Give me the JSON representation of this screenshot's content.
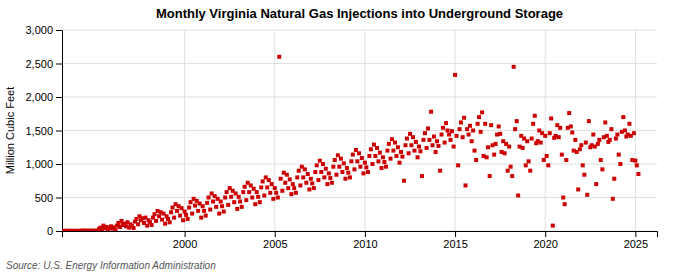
{
  "chart_data": {
    "type": "scatter",
    "title": "Monthly Virginia Natural Gas Injections into Underground Storage",
    "ylabel": "Million Cubic Feet",
    "source": "Source: U.S. Energy Information Administration",
    "color": "#cc0000",
    "marker": "square",
    "grid": true,
    "xlim": [
      1993.2,
      2026.2
    ],
    "ylim": [
      0,
      3000
    ],
    "xticks": [
      2000,
      2005,
      2010,
      2015,
      2020,
      2025
    ],
    "yticks": [
      0,
      500,
      {
        "value": 1000,
        "label": "1,000"
      },
      {
        "value": 1500,
        "label": "1,500"
      },
      {
        "value": 2000,
        "label": "2,000"
      },
      {
        "value": 2500,
        "label": "2,500"
      },
      {
        "value": 3000,
        "label": "3,000"
      }
    ],
    "x": [
      1993.25,
      1993.33,
      1993.42,
      1993.5,
      1993.58,
      1993.67,
      1993.75,
      1993.83,
      1993.92,
      1994.0,
      1994.08,
      1994.17,
      1994.25,
      1994.33,
      1994.42,
      1994.5,
      1994.58,
      1994.67,
      1994.75,
      1994.83,
      1994.92,
      1995.0,
      1995.08,
      1995.17,
      1995.25,
      1995.33,
      1995.42,
      1995.5,
      1995.58,
      1995.67,
      1995.75,
      1995.83,
      1995.92,
      1996.0,
      1996.08,
      1996.17,
      1996.25,
      1996.33,
      1996.42,
      1996.5,
      1996.58,
      1996.67,
      1996.75,
      1996.83,
      1996.92,
      1997.0,
      1997.08,
      1997.17,
      1997.25,
      1997.33,
      1997.42,
      1997.5,
      1997.58,
      1997.67,
      1997.75,
      1997.83,
      1997.92,
      1998.0,
      1998.08,
      1998.17,
      1998.25,
      1998.33,
      1998.42,
      1998.5,
      1998.58,
      1998.67,
      1998.75,
      1998.83,
      1998.92,
      1999.0,
      1999.08,
      1999.17,
      1999.25,
      1999.33,
      1999.42,
      1999.5,
      1999.58,
      1999.67,
      1999.75,
      1999.83,
      1999.92,
      2000.0,
      2000.08,
      2000.17,
      2000.25,
      2000.33,
      2000.42,
      2000.5,
      2000.58,
      2000.67,
      2000.75,
      2000.83,
      2000.92,
      2001.0,
      2001.08,
      2001.17,
      2001.25,
      2001.33,
      2001.42,
      2001.5,
      2001.58,
      2001.67,
      2001.75,
      2001.83,
      2001.92,
      2002.0,
      2002.08,
      2002.17,
      2002.25,
      2002.33,
      2002.42,
      2002.5,
      2002.58,
      2002.67,
      2002.75,
      2002.83,
      2002.92,
      2003.0,
      2003.08,
      2003.17,
      2003.25,
      2003.33,
      2003.42,
      2003.5,
      2003.58,
      2003.67,
      2003.75,
      2003.83,
      2003.92,
      2004.0,
      2004.08,
      2004.17,
      2004.25,
      2004.33,
      2004.42,
      2004.5,
      2004.58,
      2004.67,
      2004.75,
      2004.83,
      2004.92,
      2005.0,
      2005.08,
      2005.17,
      2005.25,
      2005.33,
      2005.42,
      2005.5,
      2005.58,
      2005.67,
      2005.75,
      2005.83,
      2005.92,
      2006.0,
      2006.08,
      2006.17,
      2006.25,
      2006.33,
      2006.42,
      2006.5,
      2006.58,
      2006.67,
      2006.75,
      2006.83,
      2006.92,
      2007.0,
      2007.08,
      2007.17,
      2007.25,
      2007.33,
      2007.42,
      2007.5,
      2007.58,
      2007.67,
      2007.75,
      2007.83,
      2007.92,
      2008.0,
      2008.08,
      2008.17,
      2008.25,
      2008.33,
      2008.42,
      2008.5,
      2008.58,
      2008.67,
      2008.75,
      2008.83,
      2008.92,
      2009.0,
      2009.08,
      2009.17,
      2009.25,
      2009.33,
      2009.42,
      2009.5,
      2009.58,
      2009.67,
      2009.75,
      2009.83,
      2009.92,
      2010.0,
      2010.08,
      2010.17,
      2010.25,
      2010.33,
      2010.42,
      2010.5,
      2010.58,
      2010.67,
      2010.75,
      2010.83,
      2010.92,
      2011.0,
      2011.08,
      2011.17,
      2011.25,
      2011.33,
      2011.42,
      2011.5,
      2011.58,
      2011.67,
      2011.75,
      2011.83,
      2011.92,
      2012.0,
      2012.08,
      2012.17,
      2012.25,
      2012.33,
      2012.42,
      2012.5,
      2012.58,
      2012.67,
      2012.75,
      2012.83,
      2012.92,
      2013.0,
      2013.08,
      2013.17,
      2013.25,
      2013.33,
      2013.42,
      2013.5,
      2013.58,
      2013.67,
      2013.75,
      2013.83,
      2013.92,
      2014.0,
      2014.08,
      2014.17,
      2014.25,
      2014.33,
      2014.42,
      2014.5,
      2014.58,
      2014.67,
      2014.75,
      2014.83,
      2014.92,
      2015.0,
      2015.08,
      2015.17,
      2015.25,
      2015.33,
      2015.42,
      2015.5,
      2015.58,
      2015.67,
      2015.75,
      2015.83,
      2015.92,
      2016.0,
      2016.08,
      2016.17,
      2016.25,
      2016.33,
      2016.42,
      2016.5,
      2016.58,
      2016.67,
      2016.75,
      2016.83,
      2016.92,
      2017.0,
      2017.08,
      2017.17,
      2017.25,
      2017.33,
      2017.42,
      2017.5,
      2017.58,
      2017.67,
      2017.75,
      2017.83,
      2017.92,
      2018.0,
      2018.08,
      2018.17,
      2018.25,
      2018.33,
      2018.42,
      2018.5,
      2018.58,
      2018.67,
      2018.75,
      2018.83,
      2018.92,
      2019.0,
      2019.08,
      2019.17,
      2019.25,
      2019.33,
      2019.42,
      2019.5,
      2019.58,
      2019.67,
      2019.75,
      2019.83,
      2019.92,
      2020.0,
      2020.08,
      2020.17,
      2020.25,
      2020.33,
      2020.42,
      2020.5,
      2020.58,
      2020.67,
      2020.75,
      2020.83,
      2020.92,
      2021.0,
      2021.08,
      2021.17,
      2021.25,
      2021.33,
      2021.42,
      2021.5,
      2021.58,
      2021.67,
      2021.75,
      2021.83,
      2021.92,
      2022.0,
      2022.08,
      2022.17,
      2022.25,
      2022.33,
      2022.42,
      2022.5,
      2022.58,
      2022.67,
      2022.75,
      2022.83,
      2022.92,
      2023.0,
      2023.08,
      2023.17,
      2023.25,
      2023.33,
      2023.42,
      2023.5,
      2023.58,
      2023.67,
      2023.75,
      2023.83,
      2023.92,
      2024.0,
      2024.08,
      2024.17,
      2024.25,
      2024.33,
      2024.42,
      2024.5,
      2024.58,
      2024.67,
      2024.75,
      2024.83,
      2024.92,
      2025.0,
      2025.08,
      2025.17
    ],
    "values": [
      2,
      3,
      1,
      4,
      2,
      1,
      3,
      2,
      1,
      3,
      2,
      1,
      5,
      3,
      4,
      6,
      3,
      2,
      5,
      3,
      2,
      4,
      3,
      2,
      30,
      50,
      20,
      80,
      40,
      60,
      25,
      45,
      70,
      35,
      55,
      15,
      80,
      120,
      60,
      150,
      90,
      110,
      70,
      130,
      50,
      100,
      75,
      45,
      140,
      180,
      100,
      220,
      160,
      190,
      120,
      200,
      80,
      160,
      130,
      90,
      200,
      250,
      150,
      300,
      220,
      280,
      170,
      260,
      110,
      220,
      180,
      130,
      280,
      350,
      200,
      400,
      300,
      370,
      230,
      340,
      160,
      290,
      240,
      180,
      350,
      430,
      260,
      480,
      380,
      450,
      300,
      410,
      200,
      370,
      300,
      230,
      420,
      500,
      320,
      560,
      440,
      520,
      360,
      480,
      260,
      440,
      370,
      290,
      500,
      580,
      390,
      640,
      510,
      600,
      430,
      560,
      330,
      510,
      440,
      360,
      580,
      660,
      460,
      720,
      580,
      680,
      500,
      630,
      400,
      580,
      510,
      430,
      650,
      740,
      530,
      800,
      650,
      760,
      570,
      700,
      480,
      640,
      570,
      500,
      2600,
      780,
      600,
      870,
      720,
      840,
      640,
      770,
      550,
      700,
      640,
      570,
      800,
      900,
      680,
      960,
      800,
      920,
      720,
      850,
      620,
      780,
      710,
      640,
      880,
      980,
      760,
      1050,
      880,
      1000,
      800,
      930,
      700,
      860,
      790,
      720,
      960,
      1060,
      840,
      1130,
      960,
      1080,
      880,
      1010,
      780,
      940,
      870,
      800,
      1040,
      1140,
      920,
      1210,
      1040,
      1160,
      960,
      1090,
      860,
      1020,
      950,
      880,
      1120,
      1220,
      1000,
      1290,
      1120,
      1240,
      1040,
      1170,
      940,
      1100,
      1030,
      960,
      1200,
      1300,
      1080,
      1370,
      1200,
      1320,
      1120,
      1250,
      1020,
      1180,
      1110,
      750,
      1280,
      1380,
      1160,
      1450,
      1280,
      1400,
      1200,
      1330,
      1100,
      1260,
      1190,
      820,
      1360,
      1460,
      1240,
      1530,
      1360,
      1780,
      1280,
      1410,
      1180,
      1340,
      1270,
      900,
      1440,
      1540,
      1320,
      1610,
      1500,
      1440,
      1360,
      1490,
      1260,
      2330,
      1420,
      980,
      1520,
      1620,
      1400,
      1690,
      680,
      1520,
      1440,
      1570,
      1340,
      1500,
      1200,
      1060,
      1600,
      1700,
      1480,
      1770,
      1120,
      1600,
      1100,
      1250,
      820,
      1580,
      1280,
      1140,
      1300,
      1440,
      1560,
      1450,
      1180,
      1340,
      1160,
      1300,
      900,
      1260,
      960,
      820,
      2450,
      1520,
      1640,
      530,
      1260,
      1420,
      1240,
      1380,
      980,
      1340,
      1040,
      900,
      1380,
      1600,
      1720,
      1310,
      1340,
      1500,
      1320,
      1460,
      1060,
      1420,
      1120,
      980,
      1460,
      1680,
      80,
      1390,
      1420,
      1580,
      1400,
      1540,
      1140,
      500,
      400,
      1060,
      1540,
      1760,
      1560,
      1470,
      1200,
      1360,
      1180,
      620,
      1220,
      1280,
      980,
      840,
      1320,
      540,
      1640,
      1250,
      1280,
      1440,
      1260,
      700,
      1300,
      1360,
      1060,
      920,
      1400,
      1620,
      1420,
      1330,
      1360,
      1520,
      480,
      780,
      1380,
      1440,
      1140,
      1000,
      1480,
      1700,
      1500,
      1410,
      1440,
      1600,
      1420,
      1060,
      1460,
      1050,
      980,
      850
    ]
  }
}
